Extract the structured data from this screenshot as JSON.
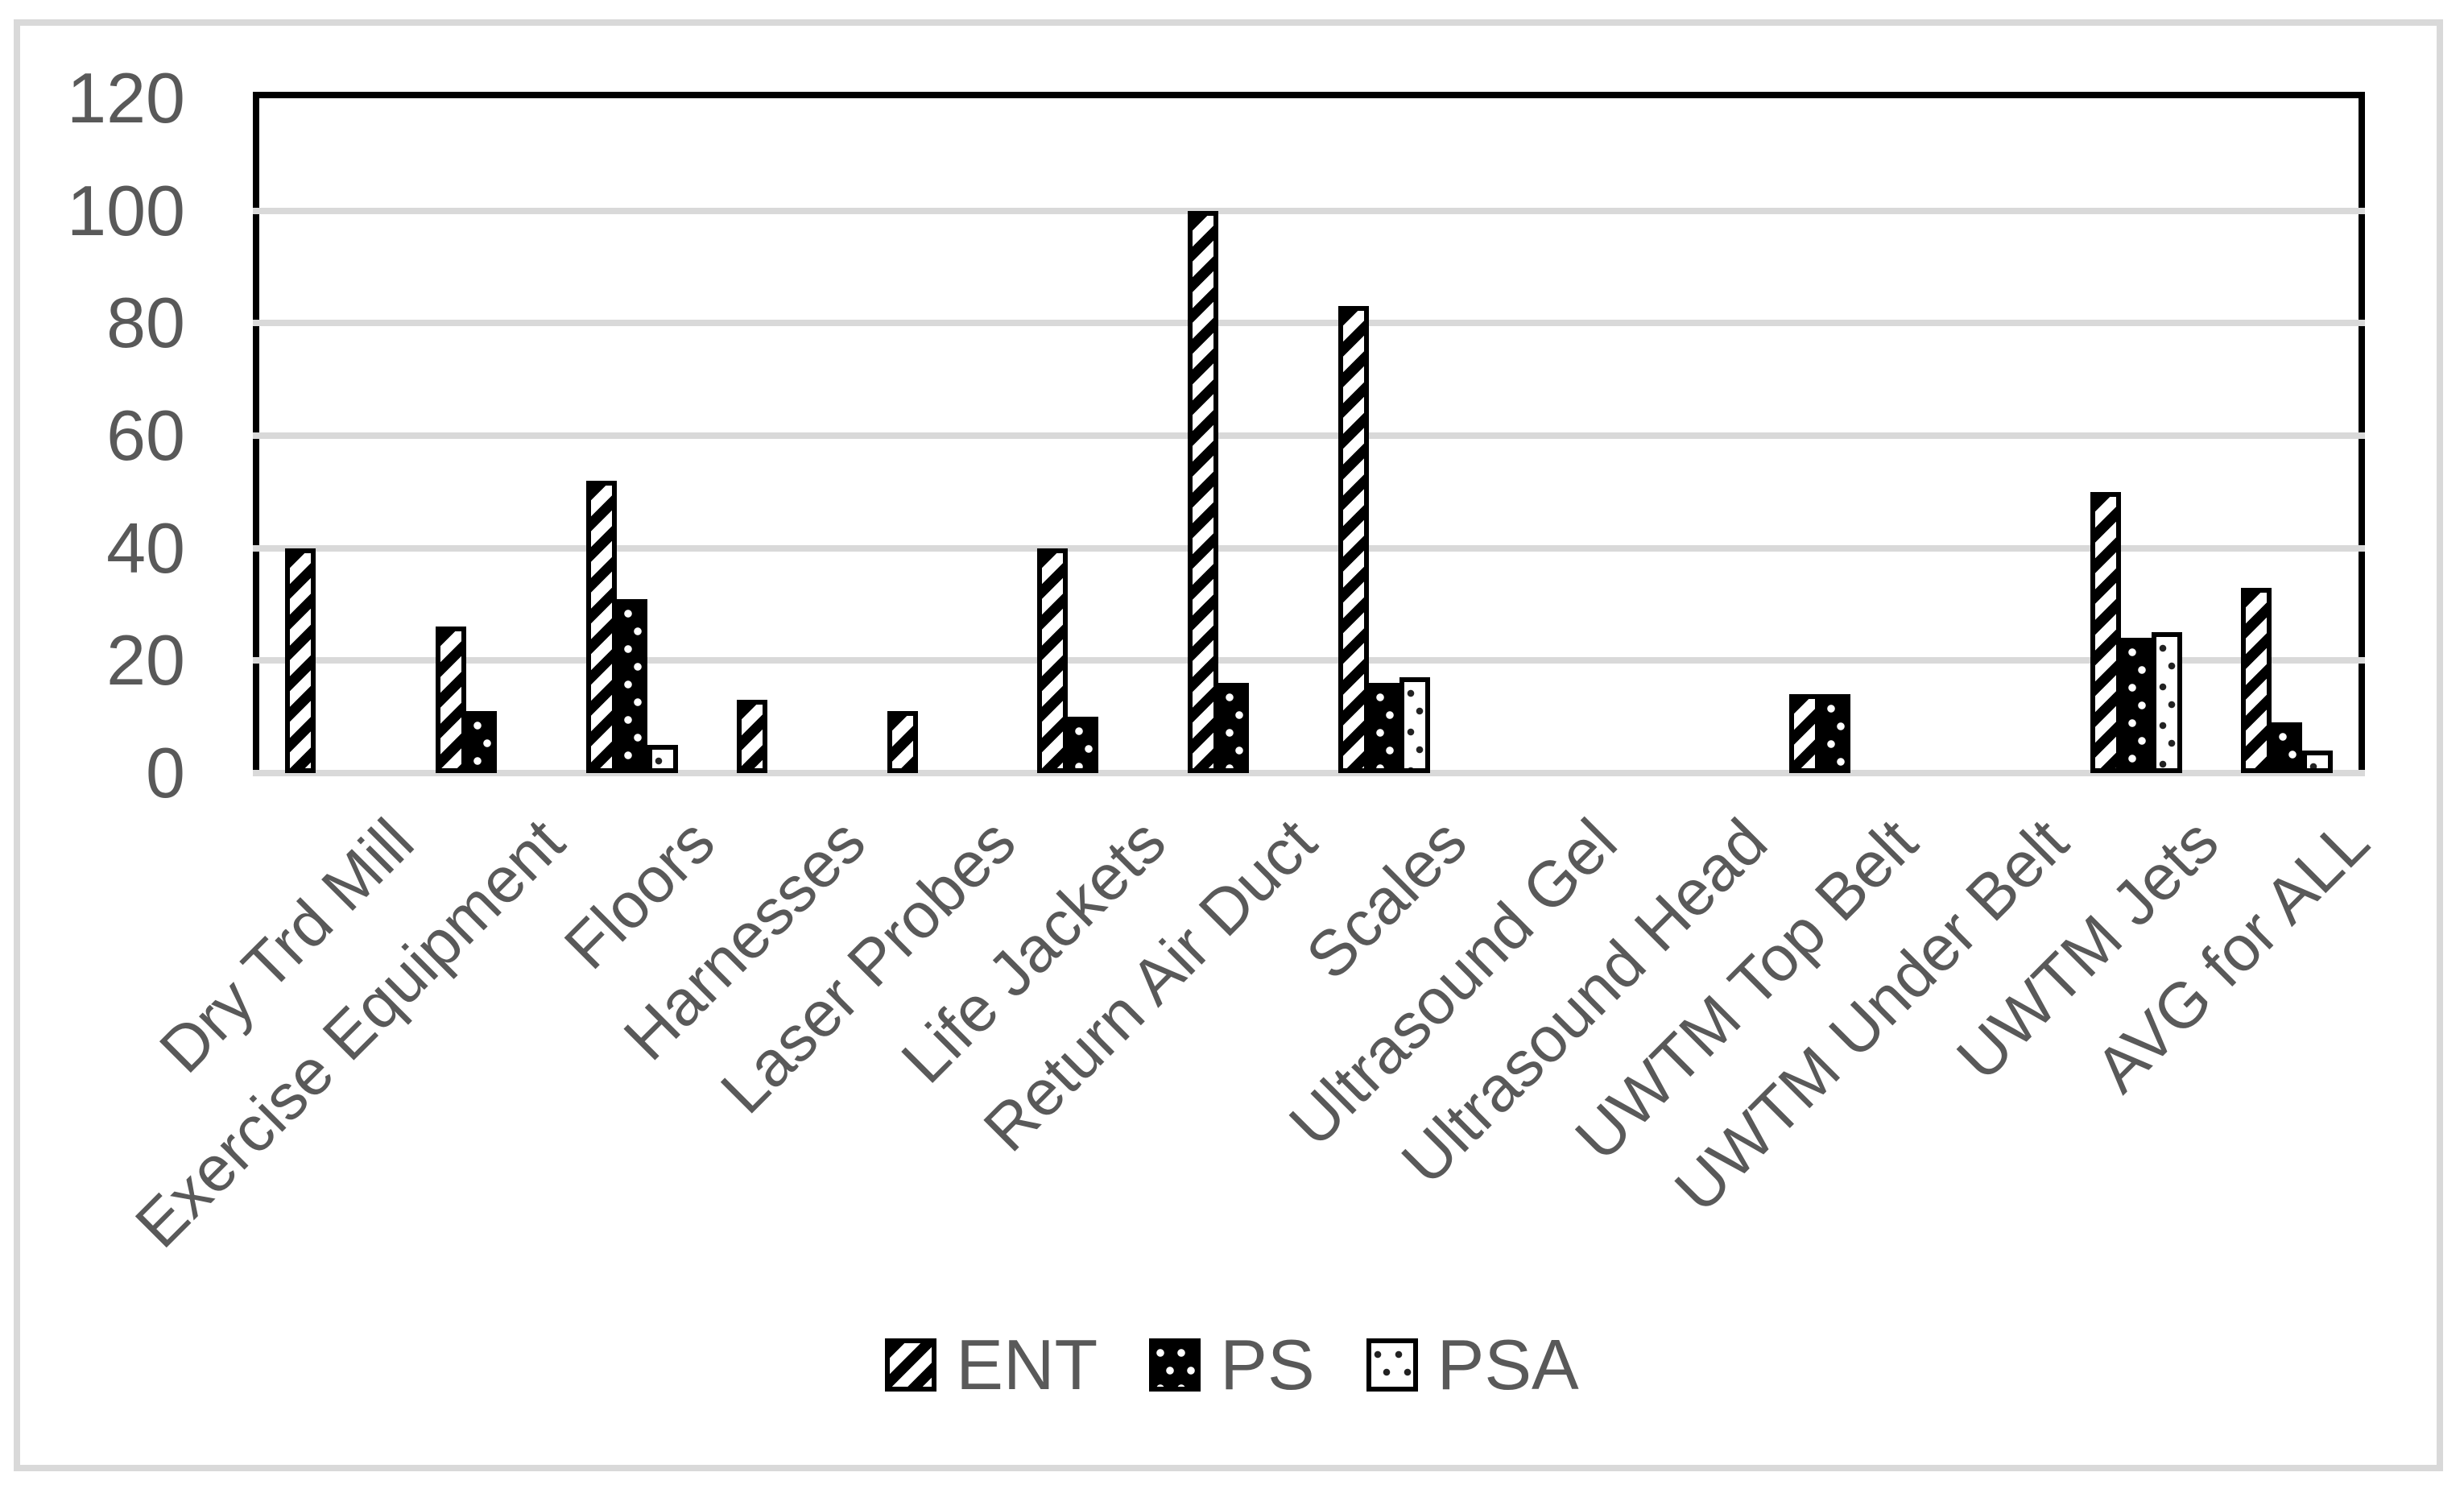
{
  "figure": {
    "background": "#ffffff",
    "border_color": "#d9d9d9",
    "text_color": "#595959",
    "gridline_color": "#d9d9d9",
    "bar_outline_color": "#000000"
  },
  "chart_data": {
    "type": "bar",
    "title": "",
    "xlabel": "",
    "ylabel": "",
    "categories": [
      "Dry Trd Mill",
      "Exercise Equipment",
      "Floors",
      "Harnesses",
      "Laser Probes",
      "Life Jackets",
      "Return Air Duct",
      "Scales",
      "Ultrasound Gel",
      "Ultrasound Head",
      "UWTM Top Belt",
      "UWTM Under Belt",
      "UWTM Jets",
      "AVG for ALL"
    ],
    "series": [
      {
        "name": "ENT",
        "pattern": "diagonal-stripes",
        "values": [
          40,
          26,
          52,
          13,
          11,
          40,
          100,
          83,
          0,
          0,
          14,
          0,
          50,
          33
        ]
      },
      {
        "name": "PS",
        "pattern": "white-dots-on-black",
        "values": [
          0,
          11,
          31,
          0,
          0,
          10,
          16,
          16,
          0,
          0,
          14,
          0,
          24,
          9
        ]
      },
      {
        "name": "PSA",
        "pattern": "black-dots-on-white",
        "values": [
          0,
          0,
          5,
          0,
          0,
          0,
          0,
          17,
          0,
          0,
          0,
          0,
          25,
          4
        ]
      }
    ],
    "ylim": [
      0,
      120
    ],
    "yticks": [
      0,
      20,
      40,
      60,
      80,
      100,
      120
    ],
    "grid": "horizontal",
    "legend_position": "bottom"
  }
}
